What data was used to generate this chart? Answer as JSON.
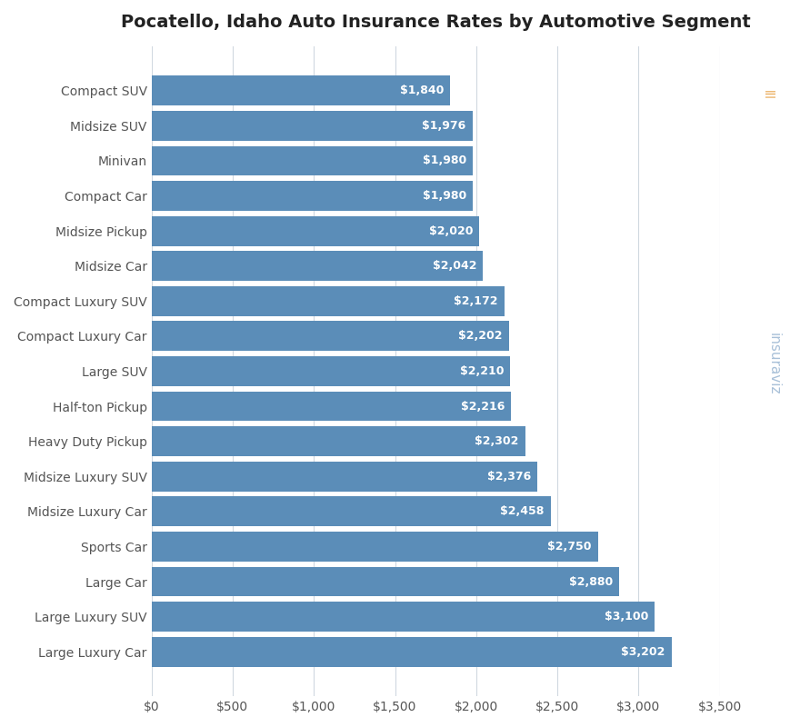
{
  "title": "Pocatello, Idaho Auto Insurance Rates by Automotive Segment",
  "categories": [
    "Large Luxury Car",
    "Large Luxury SUV",
    "Large Car",
    "Sports Car",
    "Midsize Luxury Car",
    "Midsize Luxury SUV",
    "Heavy Duty Pickup",
    "Half-ton Pickup",
    "Large SUV",
    "Compact Luxury Car",
    "Compact Luxury SUV",
    "Midsize Car",
    "Midsize Pickup",
    "Compact Car",
    "Minivan",
    "Midsize SUV",
    "Compact SUV"
  ],
  "values": [
    3202,
    3100,
    2880,
    2750,
    2458,
    2376,
    2302,
    2216,
    2210,
    2202,
    2172,
    2042,
    2020,
    1980,
    1980,
    1976,
    1840
  ],
  "bar_color": "#5b8db8",
  "label_color": "#ffffff",
  "background_color": "#ffffff",
  "grid_color": "#d0d8e0",
  "title_fontsize": 14,
  "label_fontsize": 9,
  "tick_fontsize": 10,
  "xlim": [
    0,
    3500
  ],
  "xticks": [
    0,
    500,
    1000,
    1500,
    2000,
    2500,
    3000,
    3500
  ],
  "xtick_labels": [
    "$0",
    "$500",
    "$1,000",
    "$1,500",
    "$2,000",
    "$2,500",
    "$3,000",
    "$3,500"
  ],
  "watermark_text": "insuraviz",
  "watermark_color": "#a8c0d8",
  "watermark_accent_color": "#e8a44a"
}
